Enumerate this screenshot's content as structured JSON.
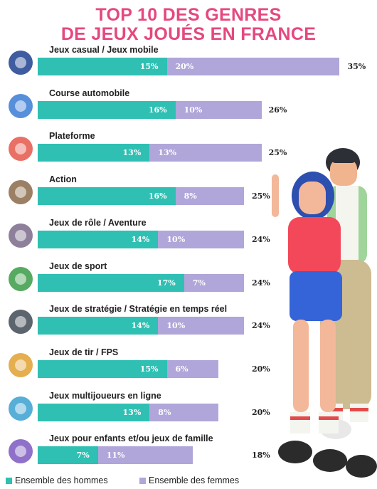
{
  "title_line1": "TOP 10 DES GENRES",
  "title_line2": "DE JEUX JOUÉS EN FRANCE",
  "colors": {
    "men": "#2fc0b3",
    "women": "#b0a6d9",
    "title": "#e5487f"
  },
  "legend": {
    "men": "Ensemble des hommes",
    "women": "Ensemble des femmes"
  },
  "chart_data": {
    "type": "bar",
    "orientation": "horizontal",
    "stacked": true,
    "categories": [
      "Jeux casual / Jeux mobile",
      "Course automobile",
      "Plateforme",
      "Action",
      "Jeux de rôle / Aventure",
      "Jeux de sport",
      "Jeux de stratégie / Stratégie en temps réel",
      "Jeux de tir / FPS",
      "Jeux multijoueurs en ligne",
      "Jeux pour enfants et/ou jeux de famille"
    ],
    "series": [
      {
        "name": "Ensemble des hommes",
        "values": [
          15,
          16,
          13,
          16,
          14,
          17,
          14,
          15,
          13,
          7
        ]
      },
      {
        "name": "Ensemble des femmes",
        "values": [
          20,
          10,
          13,
          8,
          10,
          7,
          10,
          6,
          8,
          11
        ]
      }
    ],
    "value_labels_men": [
      "15%",
      "16%",
      "13%",
      "16%",
      "14%",
      "17%",
      "14%",
      "15%",
      "13%",
      "7%"
    ],
    "value_labels_women": [
      "20%",
      "10%",
      "13%",
      "8%",
      "10%",
      "7%",
      "10%",
      "6%",
      "8%",
      "11%"
    ],
    "totals": [
      "35%",
      "26%",
      "25%",
      "25%",
      "24%",
      "24%",
      "24%",
      "20%",
      "20%",
      "18%"
    ],
    "icons": [
      "smartphone-icon",
      "steering-wheel-icon",
      "flag-icon",
      "sword-shield-icon",
      "treasure-chest-icon",
      "soccer-ball-icon",
      "chess-pieces-icon",
      "crosshair-icon",
      "gamepad-globe-icon",
      "bowling-icon"
    ]
  }
}
